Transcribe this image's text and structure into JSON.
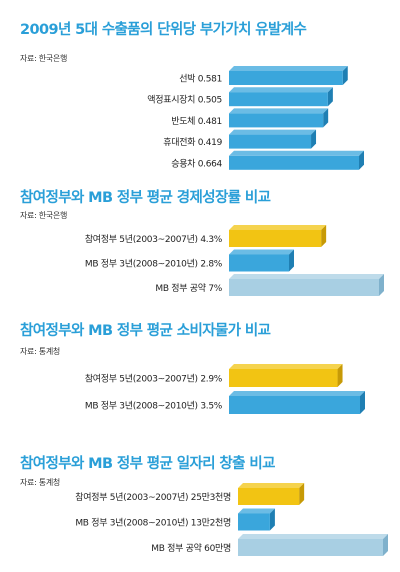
{
  "colors": {
    "title": "#2a9fd8",
    "blue": "#3aa6dc",
    "blue_dark": "#1f7fb3",
    "yellow": "#f2c413",
    "yellow_dark": "#c79a06",
    "light_blue": "#a8cfe3",
    "light_blue_dark": "#7fb1cc"
  },
  "chart_data": [
    {
      "type": "bar",
      "orientation": "horizontal",
      "title": "2009년 5대 수출품의 단위당 부가가치 유발계수",
      "source": "자료: 한국은행",
      "categories": [
        "선박 0.581",
        "액정표시장치 0.505",
        "반도체 0.481",
        "휴대전화 0.419",
        "승용차 0.664"
      ],
      "values": [
        0.581,
        0.505,
        0.481,
        0.419,
        0.664
      ],
      "xlim": [
        0,
        0.664
      ],
      "bar_colors": [
        "blue",
        "blue",
        "blue",
        "blue",
        "blue"
      ]
    },
    {
      "type": "bar",
      "orientation": "horizontal",
      "title": "참여정부와 MB 정부 평균 경제성장률 비교",
      "source": "자료: 한국은행",
      "categories": [
        "참여정부 5년(2003~2007년) 4.3%",
        "MB 정부 3년(2008~2010년) 2.8%",
        "MB 정부 공약 7%"
      ],
      "values": [
        4.3,
        2.8,
        7
      ],
      "xlim": [
        0,
        7
      ],
      "bar_colors": [
        "yellow",
        "blue",
        "light_blue"
      ]
    },
    {
      "type": "bar",
      "orientation": "horizontal",
      "title": "참여정부와 MB 정부 평균 소비자물가 비교",
      "source": "자료: 통계청",
      "categories": [
        "참여정부 5년(2003~2007년) 2.9%",
        "MB 정부 3년(2008~2010년) 3.5%"
      ],
      "values": [
        2.9,
        3.5
      ],
      "xlim": [
        0,
        3.5
      ],
      "bar_colors": [
        "yellow",
        "blue"
      ]
    },
    {
      "type": "bar",
      "orientation": "horizontal",
      "title": "참여정부와 MB 정부 평균 일자리 창출 비교",
      "source": "자료: 통계청",
      "categories": [
        "참여정부 5년(2003~2007년) 25만3천명",
        "MB 정부 3년(2008~2010년) 13만2천명",
        "MB 정부 공약 60만명"
      ],
      "values": [
        25.3,
        13.2,
        60
      ],
      "xlim": [
        0,
        60
      ],
      "bar_colors": [
        "yellow",
        "blue",
        "light_blue"
      ]
    }
  ]
}
